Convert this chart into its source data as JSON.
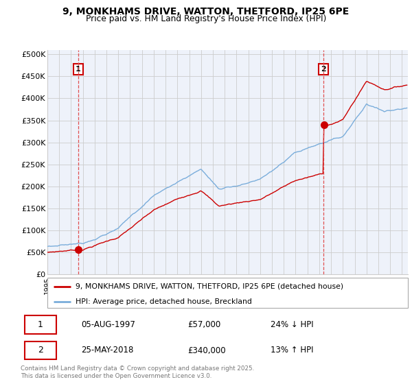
{
  "title_line1": "9, MONKHAMS DRIVE, WATTON, THETFORD, IP25 6PE",
  "title_line2": "Price paid vs. HM Land Registry's House Price Index (HPI)",
  "ylabel_ticks": [
    "£0",
    "£50K",
    "£100K",
    "£150K",
    "£200K",
    "£250K",
    "£300K",
    "£350K",
    "£400K",
    "£450K",
    "£500K"
  ],
  "ytick_values": [
    0,
    50000,
    100000,
    150000,
    200000,
    250000,
    300000,
    350000,
    400000,
    450000,
    500000
  ],
  "ylim": [
    0,
    510000
  ],
  "xlim_start": 1995.0,
  "xlim_end": 2025.5,
  "sale1_date": 1997.59,
  "sale1_price": 57000,
  "sale1_label": "1",
  "sale2_date": 2018.38,
  "sale2_price": 340000,
  "sale2_label": "2",
  "line_color_property": "#cc0000",
  "line_color_hpi": "#7aaddb",
  "marker_color": "#cc0000",
  "dashed_vline_color": "#e05050",
  "grid_color": "#cccccc",
  "background_color": "#eef2fa",
  "legend_label_property": "9, MONKHAMS DRIVE, WATTON, THETFORD, IP25 6PE (detached house)",
  "legend_label_hpi": "HPI: Average price, detached house, Breckland",
  "table_row1": [
    "1",
    "05-AUG-1997",
    "£57,000",
    "24% ↓ HPI"
  ],
  "table_row2": [
    "2",
    "25-MAY-2018",
    "£340,000",
    "13% ↑ HPI"
  ],
  "footnote": "Contains HM Land Registry data © Crown copyright and database right 2025.\nThis data is licensed under the Open Government Licence v3.0."
}
